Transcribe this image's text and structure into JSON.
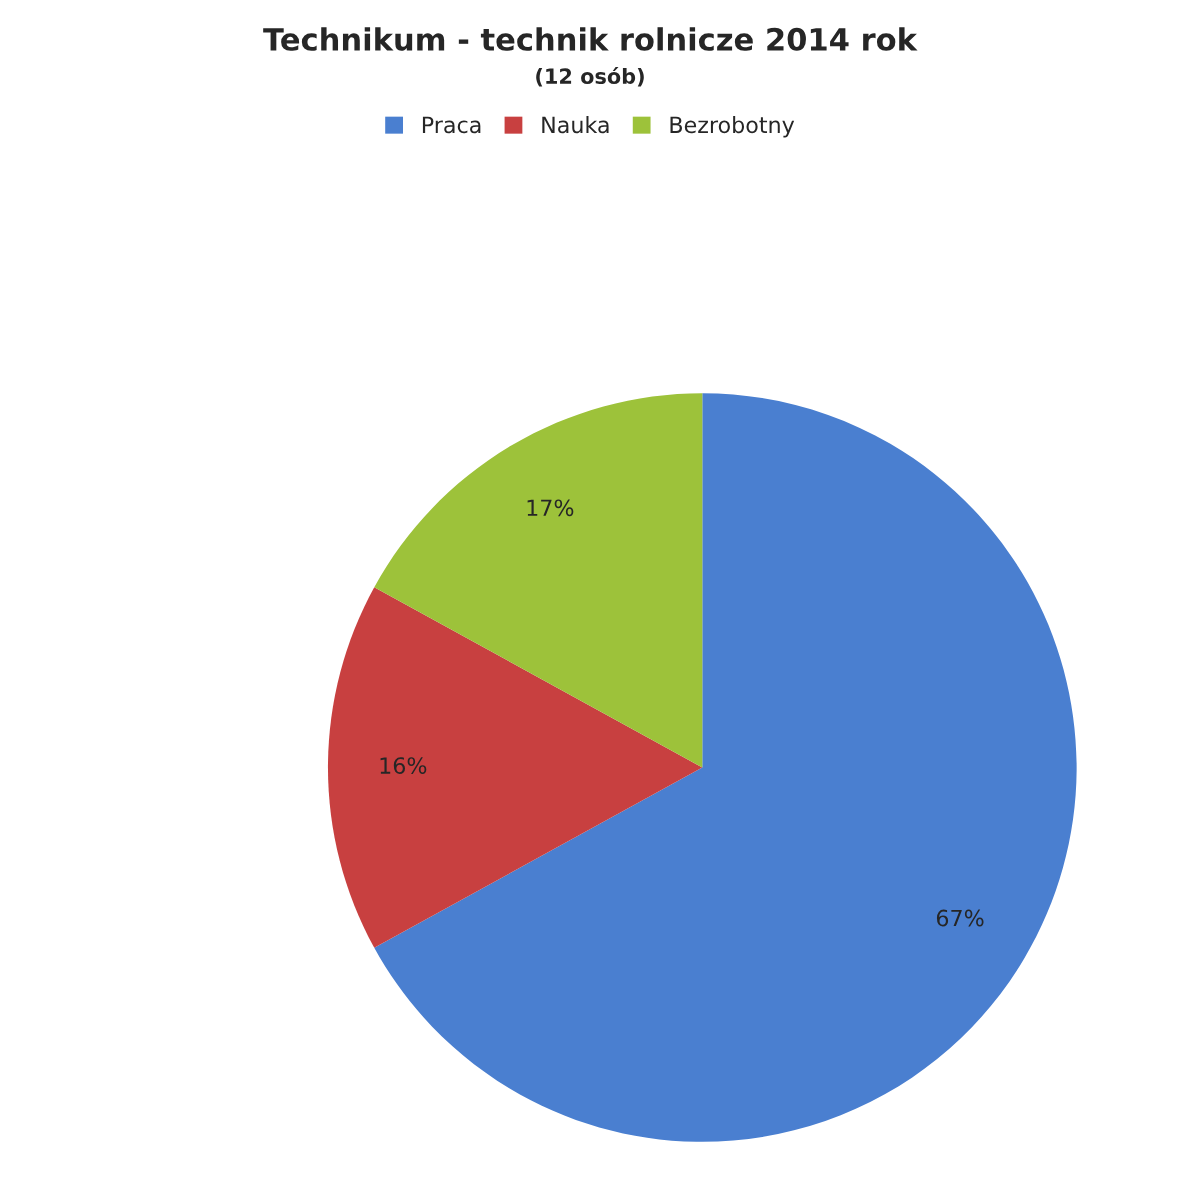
{
  "chart_data": {
    "type": "pie",
    "title": "Technikum - technik rolnicze 2014 rok",
    "subtitle": "(12 osób)",
    "categories": [
      "Praca",
      "Nauka",
      "Bezrobotny"
    ],
    "values": [
      67,
      16,
      17
    ],
    "value_labels": [
      "67%",
      "16%",
      "17%"
    ],
    "colors": [
      "#4a7fd0",
      "#c84040",
      "#9dc23a"
    ],
    "legend": "top"
  }
}
